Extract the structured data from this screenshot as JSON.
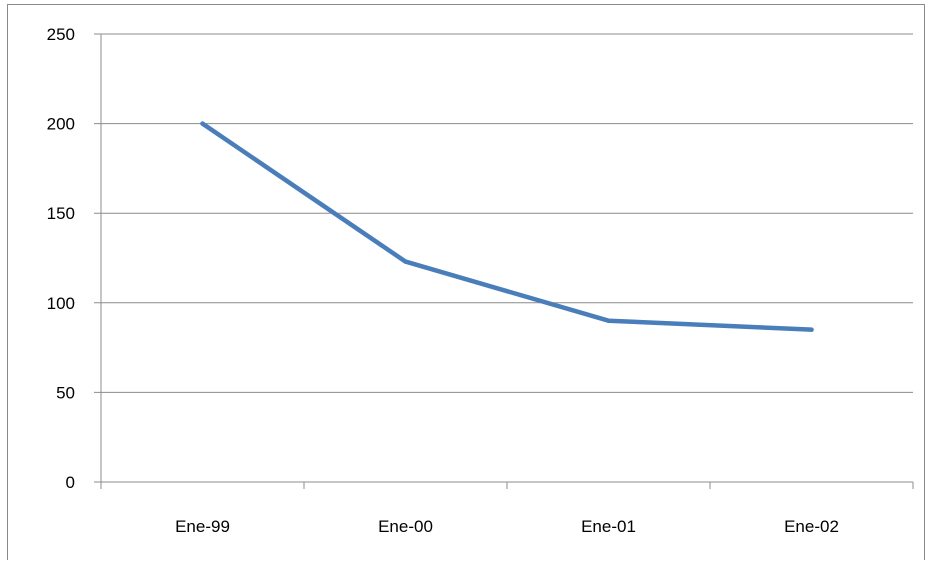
{
  "chart_data": {
    "type": "line",
    "title": "",
    "xlabel": "",
    "ylabel": "",
    "categories": [
      "Ene-99",
      "Ene-00",
      "Ene-01",
      "Ene-02"
    ],
    "series": [
      {
        "values": [
          200,
          123,
          90,
          85
        ],
        "color": "#4a7ebb"
      }
    ],
    "ylim": [
      0,
      250
    ],
    "yticks": [
      "0",
      "50",
      "100",
      "150",
      "200",
      "250"
    ],
    "grid": "horizontal",
    "legend": "none",
    "colors": {
      "gridline": "#8c8c8c",
      "axis": "#8c8c8c",
      "text": "#000000"
    }
  }
}
